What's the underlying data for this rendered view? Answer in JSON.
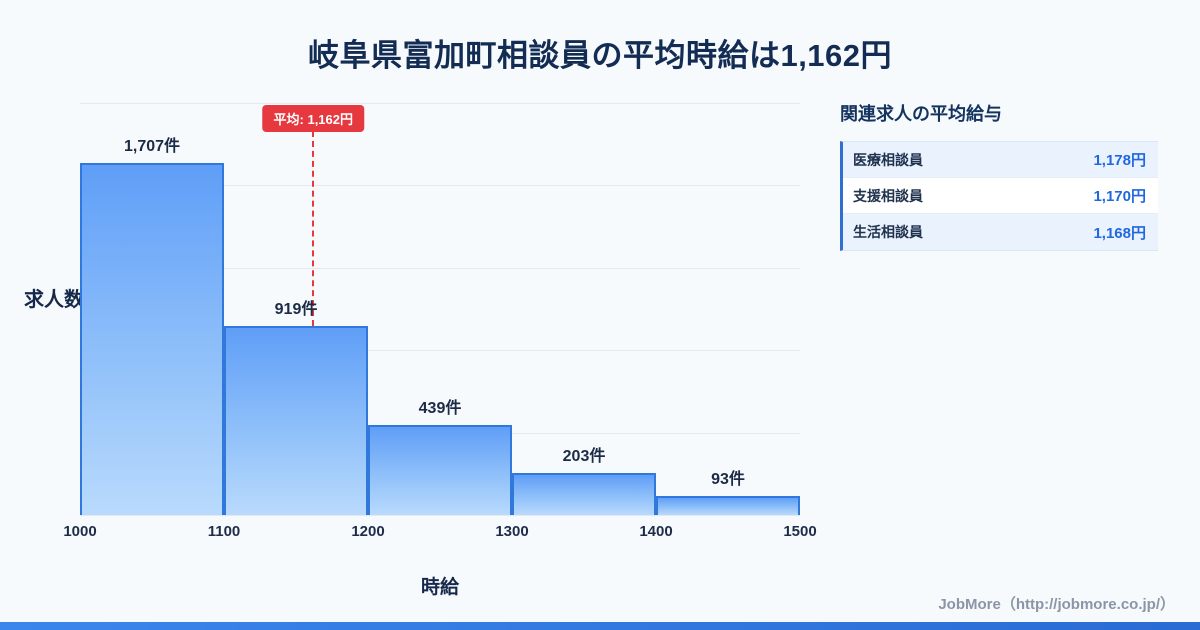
{
  "title": "岐阜県富加町相談員の平均時給は1,162円",
  "chart_data": {
    "type": "bar",
    "title": "岐阜県富加町相談員の平均時給は1,162円",
    "xlabel": "時給",
    "ylabel": "求人数",
    "xlim": [
      1000,
      1500
    ],
    "ylim": [
      0,
      2000
    ],
    "grid": true,
    "bins": [
      1000,
      1100,
      1200,
      1300,
      1400,
      1500
    ],
    "categories": [
      "1000-1100",
      "1100-1200",
      "1200-1300",
      "1300-1400",
      "1400-1500"
    ],
    "values": [
      1707,
      919,
      439,
      203,
      93
    ],
    "value_labels": [
      "1,707件",
      "919件",
      "439件",
      "203件",
      "93件"
    ],
    "x_ticks": [
      "1000",
      "1100",
      "1200",
      "1300",
      "1400",
      "1500"
    ],
    "average": 1162,
    "average_label": "平均: 1,162円"
  },
  "panel": {
    "heading": "関連求人の平均給与",
    "rows": [
      {
        "label": "医療相談員",
        "value": "1,178円"
      },
      {
        "label": "支援相談員",
        "value": "1,170円"
      },
      {
        "label": "生活相談員",
        "value": "1,168円"
      }
    ]
  },
  "footer": {
    "credit": "JobMore（http://jobmore.co.jp/）"
  },
  "colors": {
    "background": "#f7fafd",
    "title_navy": "#132c53",
    "bar_top": "#5f9ef7",
    "bar_bottom": "#b9dafc",
    "bar_border": "#3178dc",
    "average_red": "#e5383f",
    "value_blue": "#1f68e0",
    "panel_row_blue": "#e9f2fd",
    "accent_blue": "#2e6fd0",
    "credit_gray": "#8b95a5"
  }
}
